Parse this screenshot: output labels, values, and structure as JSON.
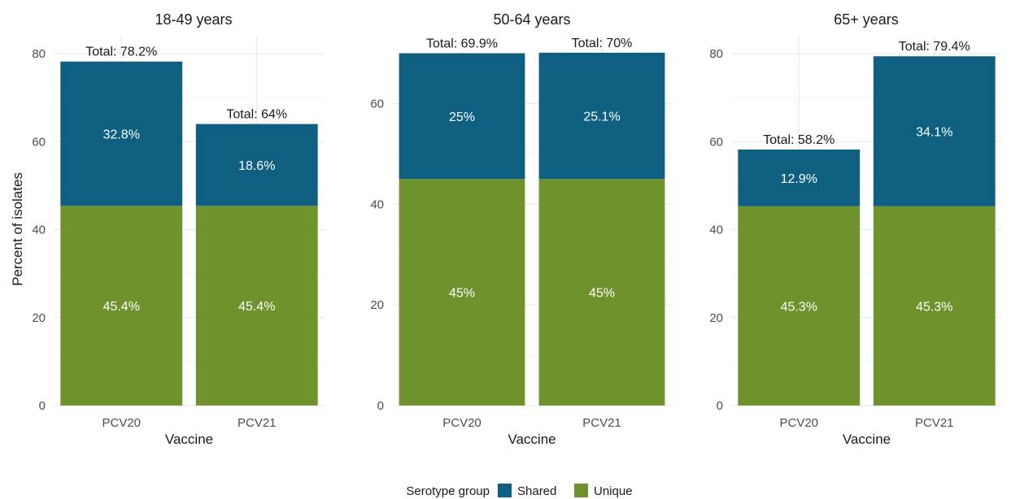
{
  "chart_data": {
    "type": "bar",
    "stacked": true,
    "ylabel": "Percent of isolates",
    "xlabel": "Vaccine",
    "legend": {
      "title": "Serotype group",
      "position": "bottom",
      "entries": [
        {
          "name": "Shared",
          "color": "#0f6080"
        },
        {
          "name": "Unique",
          "color": "#6f922d"
        }
      ]
    },
    "grid": true,
    "panels": [
      {
        "title": "18-49 years",
        "ylim": [
          0,
          80
        ],
        "yticks": [
          "0",
          "20",
          "40",
          "60",
          "80"
        ],
        "categories": [
          "PCV20",
          "PCV21"
        ],
        "series": [
          {
            "name": "Unique",
            "values": [
              45.4,
              45.4
            ],
            "labels": [
              "45.4%",
              "45.4%"
            ]
          },
          {
            "name": "Shared",
            "values": [
              32.8,
              18.6
            ],
            "labels": [
              "32.8%",
              "18.6%"
            ]
          }
        ],
        "totals": [
          "Total: 78.2%",
          "Total: 64%"
        ]
      },
      {
        "title": "50-64 years",
        "ylim": [
          0,
          70
        ],
        "yticks": [
          "0",
          "20",
          "40",
          "60"
        ],
        "categories": [
          "PCV20",
          "PCV21"
        ],
        "series": [
          {
            "name": "Unique",
            "values": [
              45,
              45
            ],
            "labels": [
              "45%",
              "45%"
            ]
          },
          {
            "name": "Shared",
            "values": [
              25,
              25.1
            ],
            "labels": [
              "25%",
              "25.1%"
            ]
          }
        ],
        "totals": [
          "Total: 69.9%",
          "Total: 70%"
        ]
      },
      {
        "title": "65+ years",
        "ylim": [
          0,
          80
        ],
        "yticks": [
          "0",
          "20",
          "40",
          "60",
          "80"
        ],
        "categories": [
          "PCV20",
          "PCV21"
        ],
        "series": [
          {
            "name": "Unique",
            "values": [
              45.3,
              45.3
            ],
            "labels": [
              "45.3%",
              "45.3%"
            ]
          },
          {
            "name": "Shared",
            "values": [
              12.9,
              34.1
            ],
            "labels": [
              "12.9%",
              "34.1%"
            ]
          }
        ],
        "totals": [
          "Total: 58.2%",
          "Total: 79.4%"
        ]
      }
    ]
  }
}
